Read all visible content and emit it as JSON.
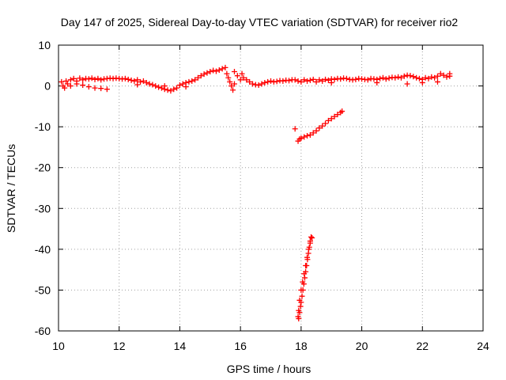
{
  "chart_data": {
    "type": "scatter",
    "title": "Day 147 of 2025, Sidereal Day-to-day VTEC variation (SDTVAR) for receiver rio2",
    "xlabel": "GPS time / hours",
    "ylabel": "SDTVAR / TECUs",
    "xlim": [
      10,
      24
    ],
    "ylim": [
      -60,
      10
    ],
    "xticks": [
      10,
      12,
      14,
      16,
      18,
      20,
      22,
      24
    ],
    "yticks": [
      -60,
      -50,
      -40,
      -30,
      -20,
      -10,
      0,
      10
    ],
    "grid": true,
    "marker": "plus",
    "color": "#ff0000",
    "series": [
      {
        "points": [
          [
            10.1,
            1.0
          ],
          [
            10.15,
            0.0
          ],
          [
            10.2,
            -0.5
          ],
          [
            10.25,
            1.2
          ],
          [
            10.3,
            0.5
          ],
          [
            10.4,
            1.5
          ],
          [
            10.5,
            1.8
          ],
          [
            10.6,
            1.2
          ],
          [
            10.7,
            1.9
          ],
          [
            10.8,
            1.5
          ],
          [
            10.9,
            1.8
          ],
          [
            11.0,
            1.7
          ],
          [
            11.1,
            1.9
          ],
          [
            11.2,
            1.6
          ],
          [
            11.3,
            1.8
          ],
          [
            11.4,
            1.5
          ],
          [
            11.5,
            1.7
          ],
          [
            11.6,
            1.8
          ],
          [
            11.7,
            1.9
          ],
          [
            11.8,
            1.8
          ],
          [
            11.9,
            1.9
          ],
          [
            12.0,
            1.8
          ],
          [
            12.1,
            1.7
          ],
          [
            12.2,
            1.8
          ],
          [
            12.3,
            1.6
          ],
          [
            12.4,
            1.4
          ],
          [
            12.5,
            1.2
          ],
          [
            12.6,
            1.5
          ],
          [
            12.7,
            1.0
          ],
          [
            12.8,
            1.2
          ],
          [
            12.9,
            0.8
          ],
          [
            13.0,
            0.5
          ],
          [
            13.1,
            0.3
          ],
          [
            13.2,
            0.0
          ],
          [
            13.3,
            -0.3
          ],
          [
            13.4,
            -0.5
          ],
          [
            13.5,
            -0.8
          ],
          [
            13.6,
            -1.0
          ],
          [
            13.7,
            -1.2
          ],
          [
            13.8,
            -0.8
          ],
          [
            13.9,
            -0.5
          ],
          [
            14.0,
            0.2
          ],
          [
            14.1,
            0.5
          ],
          [
            14.2,
            0.8
          ],
          [
            14.3,
            1.0
          ],
          [
            14.4,
            1.2
          ],
          [
            14.5,
            1.5
          ],
          [
            14.6,
            2.0
          ],
          [
            14.7,
            2.5
          ],
          [
            14.8,
            2.9
          ],
          [
            14.9,
            3.2
          ],
          [
            15.0,
            3.5
          ],
          [
            15.1,
            3.8
          ],
          [
            15.2,
            3.6
          ],
          [
            15.3,
            3.9
          ],
          [
            15.4,
            4.2
          ],
          [
            15.5,
            4.5
          ],
          [
            15.55,
            3.0
          ],
          [
            15.6,
            2.0
          ],
          [
            15.65,
            1.0
          ],
          [
            15.7,
            0.0
          ],
          [
            15.75,
            -1.0
          ],
          [
            15.8,
            3.5
          ],
          [
            15.9,
            2.5
          ],
          [
            16.0,
            1.5
          ],
          [
            16.05,
            3.0
          ],
          [
            16.1,
            2.0
          ],
          [
            16.2,
            1.5
          ],
          [
            16.3,
            1.0
          ],
          [
            16.4,
            0.5
          ],
          [
            16.5,
            0.3
          ],
          [
            16.6,
            0.2
          ],
          [
            16.7,
            0.5
          ],
          [
            16.8,
            0.8
          ],
          [
            16.9,
            1.0
          ],
          [
            17.0,
            1.2
          ],
          [
            17.1,
            1.0
          ],
          [
            17.2,
            1.1
          ],
          [
            17.3,
            1.3
          ],
          [
            17.4,
            1.2
          ],
          [
            17.5,
            1.4
          ],
          [
            17.6,
            1.3
          ],
          [
            17.7,
            1.5
          ],
          [
            17.8,
            1.5
          ],
          [
            17.9,
            1.2
          ],
          [
            18.0,
            1.0
          ],
          [
            18.1,
            1.5
          ],
          [
            18.2,
            1.2
          ],
          [
            18.3,
            1.4
          ],
          [
            18.4,
            1.6
          ],
          [
            18.5,
            1.0
          ],
          [
            18.6,
            1.5
          ],
          [
            18.7,
            1.2
          ],
          [
            18.8,
            1.6
          ],
          [
            18.9,
            1.4
          ],
          [
            19.0,
            1.7
          ],
          [
            19.1,
            1.6
          ],
          [
            19.2,
            1.8
          ],
          [
            19.3,
            1.7
          ],
          [
            19.4,
            1.9
          ],
          [
            19.5,
            1.8
          ],
          [
            19.6,
            1.6
          ],
          [
            19.7,
            1.5
          ],
          [
            19.8,
            1.6
          ],
          [
            19.9,
            1.8
          ],
          [
            20.0,
            1.7
          ],
          [
            20.1,
            1.6
          ],
          [
            20.2,
            1.5
          ],
          [
            20.3,
            1.8
          ],
          [
            20.4,
            1.7
          ],
          [
            20.5,
            1.6
          ],
          [
            20.6,
            1.8
          ],
          [
            20.7,
            2.0
          ],
          [
            20.8,
            1.7
          ],
          [
            20.9,
            1.9
          ],
          [
            21.0,
            2.1
          ],
          [
            21.1,
            2.0
          ],
          [
            21.2,
            2.2
          ],
          [
            21.3,
            2.0
          ],
          [
            21.4,
            2.4
          ],
          [
            21.5,
            2.6
          ],
          [
            21.6,
            2.5
          ],
          [
            21.7,
            2.3
          ],
          [
            21.8,
            2.0
          ],
          [
            21.9,
            1.8
          ],
          [
            22.0,
            1.6
          ],
          [
            22.1,
            2.0
          ],
          [
            22.2,
            1.8
          ],
          [
            22.3,
            2.2
          ],
          [
            22.4,
            2.0
          ],
          [
            22.5,
            2.4
          ],
          [
            22.6,
            3.0
          ],
          [
            22.7,
            2.6
          ],
          [
            22.8,
            2.2
          ],
          [
            22.9,
            2.4
          ],
          [
            22.9,
            3.0
          ],
          [
            10.4,
            0.0
          ],
          [
            10.6,
            0.5
          ],
          [
            10.8,
            0.2
          ],
          [
            11.0,
            -0.2
          ],
          [
            11.2,
            -0.5
          ],
          [
            11.4,
            -0.6
          ],
          [
            11.6,
            -0.8
          ],
          [
            12.6,
            0.3
          ],
          [
            13.5,
            0.0
          ],
          [
            14.2,
            -0.2
          ],
          [
            15.8,
            0.5
          ],
          [
            19.0,
            0.8
          ],
          [
            20.5,
            0.8
          ],
          [
            21.5,
            0.5
          ],
          [
            22.0,
            0.8
          ],
          [
            22.5,
            1.0
          ]
        ]
      },
      {
        "points": [
          [
            17.8,
            -10.5
          ],
          [
            17.9,
            -13.5
          ],
          [
            17.95,
            -13.0
          ],
          [
            18.0,
            -12.8
          ],
          [
            18.1,
            -12.5
          ],
          [
            18.2,
            -12.2
          ],
          [
            18.3,
            -12.0
          ],
          [
            18.4,
            -11.5
          ],
          [
            18.5,
            -11.0
          ],
          [
            18.6,
            -10.3
          ],
          [
            18.7,
            -9.8
          ],
          [
            18.8,
            -9.2
          ],
          [
            18.9,
            -8.5
          ],
          [
            19.0,
            -8.0
          ],
          [
            19.1,
            -7.5
          ],
          [
            19.2,
            -7.0
          ],
          [
            19.3,
            -6.5
          ],
          [
            19.35,
            -6.2
          ]
        ]
      },
      {
        "points": [
          [
            17.92,
            -57.0
          ],
          [
            17.95,
            -55.5
          ],
          [
            17.98,
            -54.0
          ],
          [
            18.0,
            -53.0
          ],
          [
            18.03,
            -51.5
          ],
          [
            18.06,
            -50.0
          ],
          [
            18.09,
            -48.5
          ],
          [
            18.12,
            -47.0
          ],
          [
            18.15,
            -45.5
          ],
          [
            18.18,
            -44.0
          ],
          [
            18.21,
            -42.5
          ],
          [
            18.24,
            -41.0
          ],
          [
            18.27,
            -39.5
          ],
          [
            18.3,
            -38.0
          ],
          [
            18.33,
            -37.0
          ],
          [
            18.36,
            -37.2
          ],
          [
            18.3,
            -38.5
          ],
          [
            18.25,
            -40.0
          ],
          [
            18.2,
            -42.0
          ],
          [
            18.15,
            -44.0
          ],
          [
            18.1,
            -46.0
          ],
          [
            18.05,
            -48.0
          ],
          [
            18.0,
            -50.0
          ],
          [
            17.95,
            -52.5
          ],
          [
            17.92,
            -55.0
          ],
          [
            17.9,
            -56.5
          ]
        ]
      }
    ]
  }
}
